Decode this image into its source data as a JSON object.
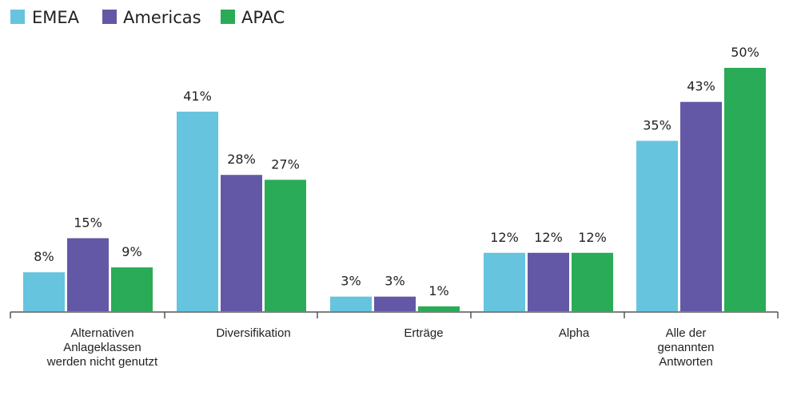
{
  "chart_data": {
    "type": "bar",
    "title": "",
    "xlabel": "",
    "ylabel": "",
    "categories": [
      [
        "Alternativen",
        "Anlageklassen",
        "werden nicht genutzt"
      ],
      [
        "Diversifikation"
      ],
      [
        "Erträge"
      ],
      [
        "Alpha"
      ],
      [
        "Alle der",
        "genannten",
        "Antworten"
      ]
    ],
    "series": [
      {
        "name": "EMEA",
        "color": "#66c4de",
        "values": [
          8,
          41,
          3,
          12,
          35
        ],
        "labels": [
          "8%",
          "41%",
          "3%",
          "12%",
          "35%"
        ]
      },
      {
        "name": "Americas",
        "color": "#6358a6",
        "values": [
          15,
          28,
          3,
          12,
          43
        ],
        "labels": [
          "15%",
          "28%",
          "3%",
          "12%",
          "43%"
        ]
      },
      {
        "name": "APAC",
        "color": "#2aab57",
        "values": [
          9,
          27,
          1,
          12,
          50
        ],
        "labels": [
          "9%",
          "27%",
          "1%",
          "12%",
          "50%"
        ]
      }
    ],
    "ylim": [
      0,
      50
    ],
    "grid": false,
    "legend": "top-left"
  }
}
